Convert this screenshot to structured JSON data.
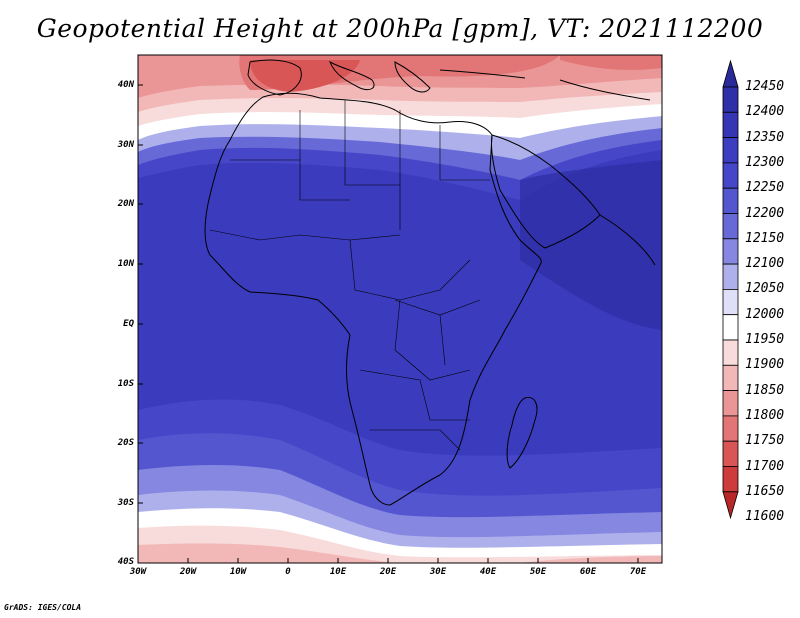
{
  "title": "Geopotential Height at 200hPa [gpm], VT: 2021112200",
  "credit": "GrADS: IGES/COLA",
  "map": {
    "variable": "Geopotential Height",
    "level": "200hPa",
    "units": "gpm",
    "valid_time": "2021112200",
    "lon_range": [
      -30,
      75
    ],
    "lat_range": [
      -40,
      45
    ],
    "lat_labels": [
      "40N",
      "30N",
      "20N",
      "10N",
      "EQ",
      "10S",
      "20S",
      "30S",
      "40S"
    ],
    "lon_labels": [
      "30W",
      "20W",
      "10W",
      "0",
      "10E",
      "20E",
      "30E",
      "40E",
      "50E",
      "60E",
      "70E"
    ]
  },
  "colorbar": {
    "labels": [
      "12450",
      "12400",
      "12350",
      "12300",
      "12250",
      "12200",
      "12150",
      "12100",
      "12050",
      "12000",
      "11950",
      "11900",
      "11850",
      "11800",
      "11750",
      "11700",
      "11650",
      "11600"
    ],
    "colors": [
      "#2b2a9a",
      "#2f2fa8",
      "#3636b5",
      "#3c3dc0",
      "#4547c8",
      "#5356cf",
      "#6769d6",
      "#8587e0",
      "#aeb0ec",
      "#dfe0f8",
      "#ffffff",
      "#f8dcdc",
      "#f2b8b8",
      "#eb9696",
      "#e27575",
      "#d95656",
      "#cd3b3b",
      "#b82727"
    ]
  }
}
